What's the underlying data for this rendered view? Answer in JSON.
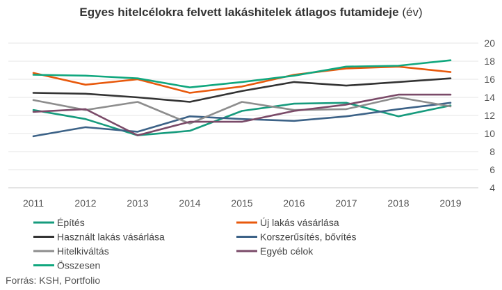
{
  "title": {
    "main": "Egyes hitelcélokra felvett lakáshitelek átlagos futamideje",
    "unit": "(év)"
  },
  "source": "Forrás: KSH, Portfolio",
  "chart_data": {
    "type": "line",
    "title": "Egyes hitelcélokra felvett lakáshitelek átlagos futamideje (év)",
    "x": [
      "2011",
      "2012",
      "2013",
      "2014",
      "2015",
      "2016",
      "2017",
      "2018",
      "2019"
    ],
    "ylim": [
      4,
      20
    ],
    "yticks": [
      4,
      6,
      8,
      10,
      12,
      14,
      16,
      18,
      20
    ],
    "y_axis_side": "right",
    "grid": true,
    "legend_position": "bottom",
    "series": [
      {
        "name": "Építés",
        "color": "#169b7d",
        "values": [
          12.6,
          11.6,
          9.8,
          10.3,
          12.5,
          13.3,
          13.4,
          11.9,
          13.1
        ]
      },
      {
        "name": "Új lakás vásárlása",
        "color": "#e8590c",
        "values": [
          16.7,
          15.4,
          16.0,
          14.5,
          15.2,
          16.5,
          17.2,
          17.4,
          16.8
        ]
      },
      {
        "name": "Használt lakás vásárlása",
        "color": "#333333",
        "values": [
          14.5,
          14.4,
          14.0,
          13.5,
          14.7,
          15.7,
          15.3,
          15.7,
          16.1
        ]
      },
      {
        "name": "Korszerűsítés, bővítés",
        "color": "#3c6287",
        "values": [
          9.7,
          10.7,
          10.2,
          11.9,
          11.6,
          11.4,
          11.9,
          12.7,
          13.4
        ]
      },
      {
        "name": "Hitelkiváltás",
        "color": "#8d8d8d",
        "values": [
          13.7,
          12.6,
          13.5,
          11.1,
          13.5,
          12.6,
          12.7,
          14.0,
          13.0
        ]
      },
      {
        "name": "Egyéb célok",
        "color": "#7a4a68",
        "values": [
          12.4,
          12.7,
          9.8,
          11.3,
          11.3,
          12.5,
          13.2,
          14.3,
          14.3
        ]
      },
      {
        "name": "Összesen",
        "color": "#10a77e",
        "values": [
          16.5,
          16.4,
          16.1,
          15.1,
          15.7,
          16.4,
          17.4,
          17.5,
          18.1
        ]
      }
    ]
  }
}
